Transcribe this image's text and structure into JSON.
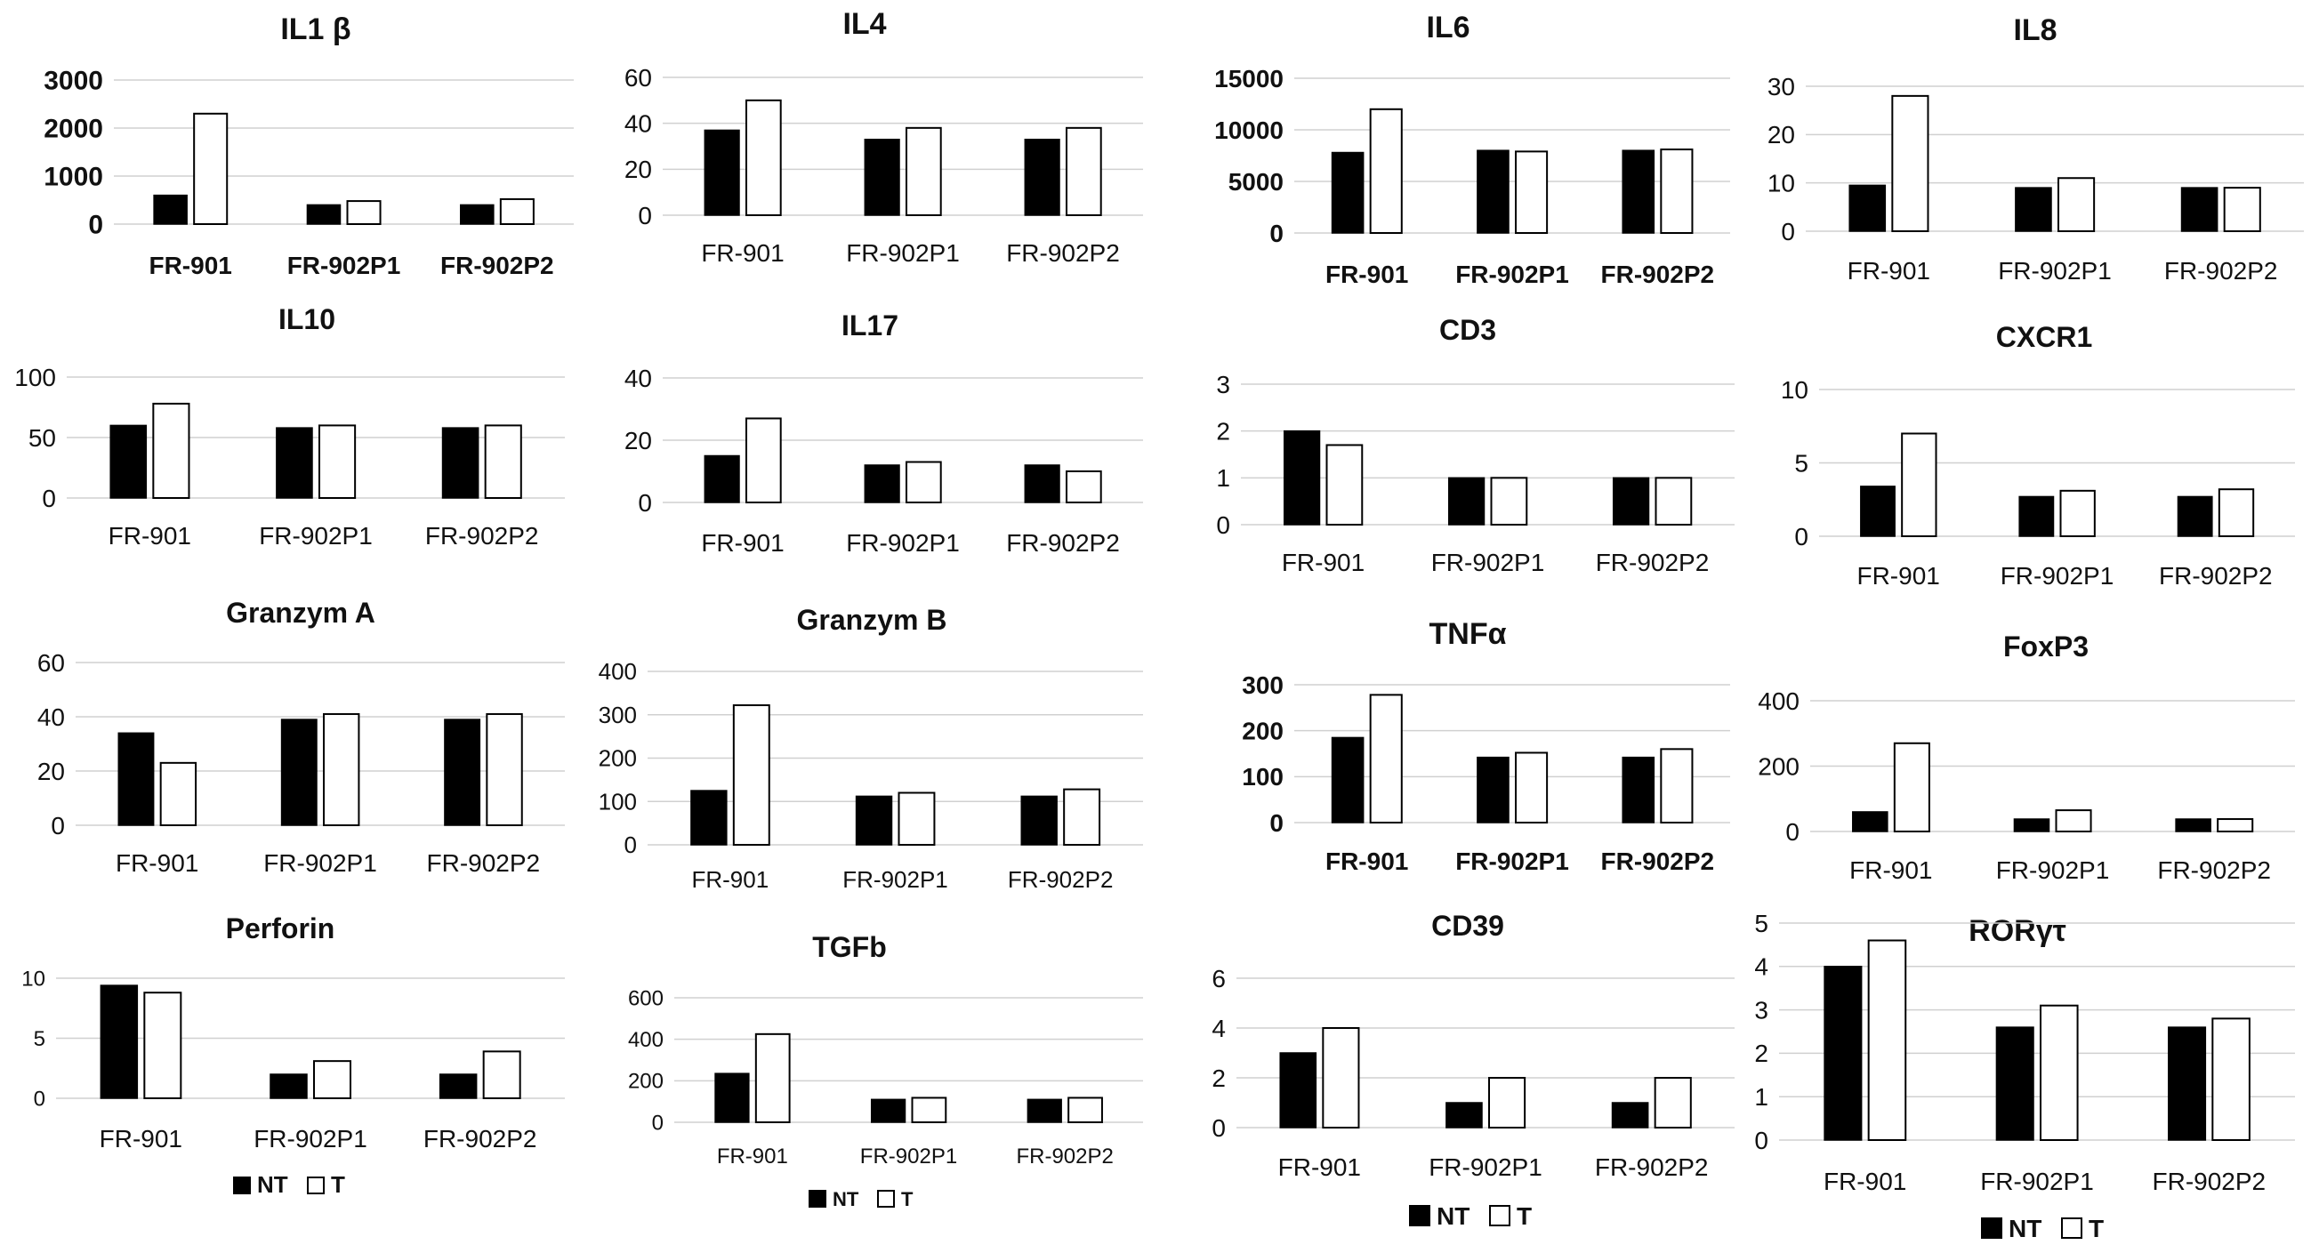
{
  "chart_data": [
    {
      "type": "bar",
      "title": "IL1 β",
      "categories": [
        "FR-901",
        "FR-902P1",
        "FR-902P2"
      ],
      "series": [
        {
          "name": "NT",
          "values": [
            600,
            400,
            400
          ]
        },
        {
          "name": "T",
          "values": [
            2300,
            480,
            520
          ]
        }
      ],
      "ylim": [
        0,
        3000
      ],
      "yticks": [
        0,
        1000,
        2000,
        3000
      ],
      "xlabel": "",
      "ylabel": ""
    },
    {
      "type": "bar",
      "title": "IL4",
      "categories": [
        "FR-901",
        "FR-902P1",
        "FR-902P2"
      ],
      "series": [
        {
          "name": "NT",
          "values": [
            37,
            33,
            33
          ]
        },
        {
          "name": "T",
          "values": [
            50,
            38,
            38
          ]
        }
      ],
      "ylim": [
        0,
        60
      ],
      "yticks": [
        0,
        20,
        40,
        60
      ],
      "xlabel": "",
      "ylabel": ""
    },
    {
      "type": "bar",
      "title": "IL6",
      "categories": [
        "FR-901",
        "FR-902P1",
        "FR-902P2"
      ],
      "series": [
        {
          "name": "NT",
          "values": [
            7800,
            8000,
            8000
          ]
        },
        {
          "name": "T",
          "values": [
            12000,
            7900,
            8100
          ]
        }
      ],
      "ylim": [
        0,
        15000
      ],
      "yticks": [
        0,
        5000,
        10000,
        15000
      ],
      "xlabel": "",
      "ylabel": ""
    },
    {
      "type": "bar",
      "title": "IL8",
      "categories": [
        "FR-901",
        "FR-902P1",
        "FR-902P2"
      ],
      "series": [
        {
          "name": "NT",
          "values": [
            9.5,
            9,
            9
          ]
        },
        {
          "name": "T",
          "values": [
            28,
            11,
            9
          ]
        }
      ],
      "ylim": [
        0,
        30
      ],
      "yticks": [
        0,
        10,
        20,
        30
      ],
      "xlabel": "",
      "ylabel": ""
    },
    {
      "type": "bar",
      "title": "IL10",
      "categories": [
        "FR-901",
        "FR-902P1",
        "FR-902P2"
      ],
      "series": [
        {
          "name": "NT",
          "values": [
            60,
            58,
            58
          ]
        },
        {
          "name": "T",
          "values": [
            78,
            60,
            60
          ]
        }
      ],
      "ylim": [
        0,
        100
      ],
      "yticks": [
        0,
        50,
        100
      ],
      "xlabel": "",
      "ylabel": ""
    },
    {
      "type": "bar",
      "title": "IL17",
      "categories": [
        "FR-901",
        "FR-902P1",
        "FR-902P2"
      ],
      "series": [
        {
          "name": "NT",
          "values": [
            15,
            12,
            12
          ]
        },
        {
          "name": "T",
          "values": [
            27,
            13,
            10
          ]
        }
      ],
      "ylim": [
        0,
        40
      ],
      "yticks": [
        0,
        20,
        40
      ],
      "xlabel": "",
      "ylabel": ""
    },
    {
      "type": "bar",
      "title": "CD3",
      "categories": [
        "FR-901",
        "FR-902P1",
        "FR-902P2"
      ],
      "series": [
        {
          "name": "NT",
          "values": [
            2,
            1,
            1
          ]
        },
        {
          "name": "T",
          "values": [
            1.7,
            1,
            1
          ]
        }
      ],
      "ylim": [
        0,
        3
      ],
      "yticks": [
        0,
        1,
        2,
        3
      ],
      "xlabel": "",
      "ylabel": ""
    },
    {
      "type": "bar",
      "title": "CXCR1",
      "categories": [
        "FR-901",
        "FR-902P1",
        "FR-902P2"
      ],
      "series": [
        {
          "name": "NT",
          "values": [
            3.4,
            2.7,
            2.7
          ]
        },
        {
          "name": "T",
          "values": [
            7,
            3.1,
            3.2
          ]
        }
      ],
      "ylim": [
        0,
        10
      ],
      "yticks": [
        0,
        5,
        10
      ],
      "xlabel": "",
      "ylabel": ""
    },
    {
      "type": "bar",
      "title": "Granzym A",
      "categories": [
        "FR-901",
        "FR-902P1",
        "FR-902P2"
      ],
      "series": [
        {
          "name": "NT",
          "values": [
            34,
            39,
            39
          ]
        },
        {
          "name": "T",
          "values": [
            23,
            41,
            41
          ]
        }
      ],
      "ylim": [
        0,
        60
      ],
      "yticks": [
        0,
        20,
        40,
        60
      ],
      "xlabel": "",
      "ylabel": ""
    },
    {
      "type": "bar",
      "title": "Granzym B",
      "categories": [
        "FR-901",
        "FR-902P1",
        "FR-902P2"
      ],
      "series": [
        {
          "name": "NT",
          "values": [
            125,
            112,
            112
          ]
        },
        {
          "name": "T",
          "values": [
            322,
            120,
            128
          ]
        }
      ],
      "ylim": [
        0,
        400
      ],
      "yticks": [
        0,
        100,
        200,
        300,
        400
      ],
      "xlabel": "",
      "ylabel": ""
    },
    {
      "type": "bar",
      "title": "TNFα",
      "categories": [
        "FR-901",
        "FR-902P1",
        "FR-902P2"
      ],
      "series": [
        {
          "name": "NT",
          "values": [
            185,
            142,
            142
          ]
        },
        {
          "name": "T",
          "values": [
            278,
            152,
            160
          ]
        }
      ],
      "ylim": [
        0,
        300
      ],
      "yticks": [
        0,
        100,
        200,
        300
      ],
      "xlabel": "",
      "ylabel": ""
    },
    {
      "type": "bar",
      "title": "FoxP3",
      "categories": [
        "FR-901",
        "FR-902P1",
        "FR-902P2"
      ],
      "series": [
        {
          "name": "NT",
          "values": [
            60,
            38,
            38
          ]
        },
        {
          "name": "T",
          "values": [
            270,
            65,
            38
          ]
        }
      ],
      "ylim": [
        0,
        400
      ],
      "yticks": [
        0,
        200,
        400
      ],
      "xlabel": "",
      "ylabel": ""
    },
    {
      "type": "bar",
      "title": "Perforin",
      "categories": [
        "FR-901",
        "FR-902P1",
        "FR-902P2"
      ],
      "series": [
        {
          "name": "NT",
          "values": [
            9.4,
            2,
            2
          ]
        },
        {
          "name": "T",
          "values": [
            8.8,
            3.1,
            3.9
          ]
        }
      ],
      "ylim": [
        0,
        10
      ],
      "yticks": [
        0,
        5,
        10
      ],
      "xlabel": "",
      "ylabel": ""
    },
    {
      "type": "bar",
      "title": "TGFb",
      "categories": [
        "FR-901",
        "FR-902P1",
        "FR-902P2"
      ],
      "series": [
        {
          "name": "NT",
          "values": [
            235,
            110,
            110
          ]
        },
        {
          "name": "T",
          "values": [
            425,
            118,
            118
          ]
        }
      ],
      "ylim": [
        0,
        600
      ],
      "yticks": [
        0,
        200,
        400,
        600
      ],
      "xlabel": "",
      "ylabel": ""
    },
    {
      "type": "bar",
      "title": "CD39",
      "categories": [
        "FR-901",
        "FR-902P1",
        "FR-902P2"
      ],
      "series": [
        {
          "name": "NT",
          "values": [
            3,
            1,
            1
          ]
        },
        {
          "name": "T",
          "values": [
            4,
            2,
            2
          ]
        }
      ],
      "ylim": [
        0,
        6
      ],
      "yticks": [
        0,
        2,
        4,
        6
      ],
      "xlabel": "",
      "ylabel": ""
    },
    {
      "type": "bar",
      "title": "RORγτ",
      "categories": [
        "FR-901",
        "FR-902P1",
        "FR-902P2"
      ],
      "series": [
        {
          "name": "NT",
          "values": [
            4,
            2.6,
            2.6
          ]
        },
        {
          "name": "T",
          "values": [
            4.6,
            3.1,
            2.8
          ]
        }
      ],
      "ylim": [
        0,
        5
      ],
      "yticks": [
        0,
        1,
        2,
        3,
        4,
        5
      ],
      "xlabel": "",
      "ylabel": ""
    }
  ],
  "legends": [
    {
      "panel": "Perforin",
      "entries": [
        "NT",
        "T"
      ]
    },
    {
      "panel": "TGFb",
      "entries": [
        "NT",
        "T"
      ]
    },
    {
      "panel": "CD39",
      "entries": [
        "NT",
        "T"
      ]
    },
    {
      "panel": "RORγτ",
      "entries": [
        "NT",
        "T"
      ]
    }
  ],
  "colors": {
    "NT": "#000000",
    "T": "#ffffff",
    "gridline": "#d0d0d0",
    "text": "#111111"
  }
}
